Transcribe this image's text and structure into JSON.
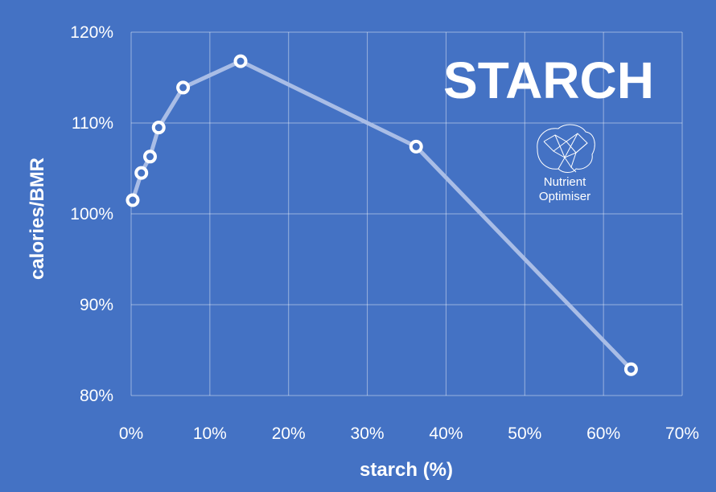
{
  "chart_data": {
    "type": "line",
    "title": "STARCH",
    "xlabel": "starch (%)",
    "ylabel": "calories/BMR",
    "xlim": [
      0,
      70
    ],
    "ylim": [
      80,
      120
    ],
    "x_ticks": [
      "0%",
      "10%",
      "20%",
      "30%",
      "40%",
      "50%",
      "60%",
      "70%"
    ],
    "y_ticks": [
      "80%",
      "90%",
      "100%",
      "110%",
      "120%"
    ],
    "grid": true,
    "series": [
      {
        "x": [
          0.2,
          1.3,
          2.4,
          3.5,
          6.6,
          13.9,
          36.2,
          63.5
        ],
        "y": [
          101.5,
          104.5,
          106.3,
          109.5,
          113.9,
          116.8,
          107.4,
          82.9
        ]
      }
    ]
  },
  "logo": {
    "line1": "Nutrient",
    "line2": "Optimiser",
    "icon": "brain-network-icon"
  },
  "colors": {
    "background": "#4472c4",
    "line": "#a9bde6",
    "marker_fill": "#4472c4",
    "marker_stroke": "#ffffff"
  }
}
